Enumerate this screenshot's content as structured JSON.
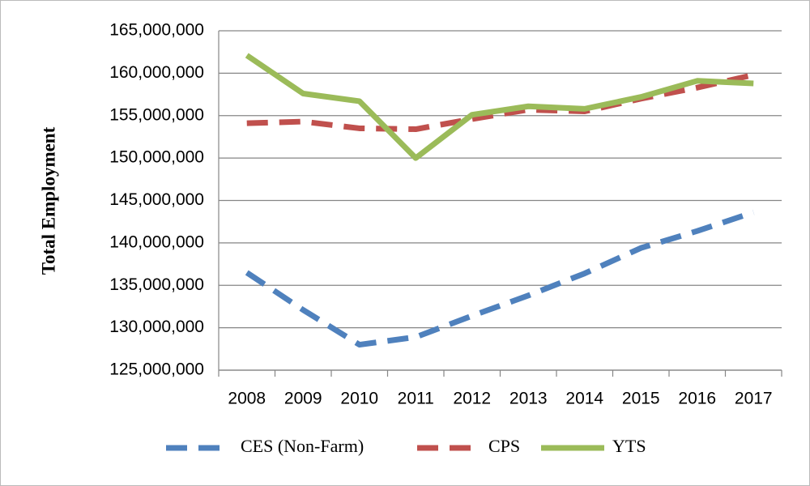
{
  "chart_data": {
    "type": "line",
    "y_label": "Total Employment",
    "categories": [
      "2008",
      "2009",
      "2010",
      "2011",
      "2012",
      "2013",
      "2014",
      "2015",
      "2016",
      "2017"
    ],
    "series": [
      {
        "name": "CES (Non-Farm)",
        "color": "#4f81bd",
        "line_style": "dashed",
        "values": [
          136500000,
          132100000,
          128000000,
          128900000,
          131400000,
          133800000,
          136400000,
          139400000,
          141400000,
          143600000
        ]
      },
      {
        "name": "CPS",
        "color": "#c0504d",
        "line_style": "dashed",
        "values": [
          154100000,
          154300000,
          153500000,
          153400000,
          154600000,
          155700000,
          155500000,
          157000000,
          158300000,
          159800000
        ]
      },
      {
        "name": "YTS",
        "color": "#9bbb59",
        "line_style": "solid",
        "values": [
          162100000,
          157600000,
          156700000,
          150000000,
          155100000,
          156100000,
          155800000,
          157200000,
          159100000,
          158800000
        ]
      }
    ],
    "ylim": [
      125000000,
      165000000
    ],
    "yticks": [
      {
        "value": 125000000,
        "label": "125,000,000"
      },
      {
        "value": 130000000,
        "label": "130,000,000"
      },
      {
        "value": 135000000,
        "label": "135,000,000"
      },
      {
        "value": 140000000,
        "label": "140,000,000"
      },
      {
        "value": 145000000,
        "label": "145,000,000"
      },
      {
        "value": 150000000,
        "label": "150,000,000"
      },
      {
        "value": 155000000,
        "label": "155,000,000"
      },
      {
        "value": 160000000,
        "label": "160,000,000"
      },
      {
        "value": 165000000,
        "label": "165,000,000"
      }
    ],
    "grid": true,
    "legend": "bottom"
  }
}
